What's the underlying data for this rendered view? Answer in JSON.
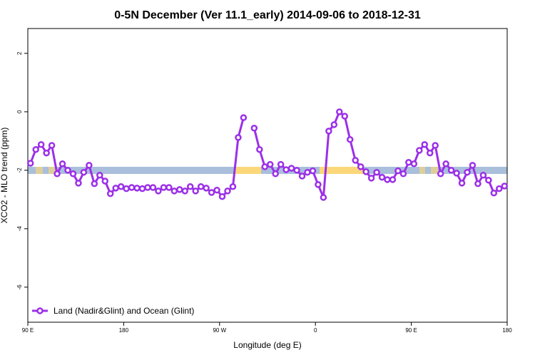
{
  "chart_data": {
    "type": "line",
    "title": "0-5N December (Ver 11.1_early)   2014-09-06 to 2018-12-31",
    "x_label": "Longitude (deg E)",
    "y_label": "XCO2 - MLO trend (ppm)",
    "xlim": [
      90,
      540
    ],
    "ylim": [
      -7.2,
      2.85
    ],
    "xticks": [
      {
        "value": 90,
        "label": "90 E"
      },
      {
        "value": 180,
        "label": "180"
      },
      {
        "value": 270,
        "label": "90 W"
      },
      {
        "value": 360,
        "label": "0"
      },
      {
        "value": 450,
        "label": "90 E"
      },
      {
        "value": 540,
        "label": "180"
      }
    ],
    "yticks": [
      2,
      0,
      -2,
      -4,
      -6
    ],
    "legend_position": "bottom-left",
    "x": [
      92.5,
      97.5,
      102.5,
      107.5,
      112.5,
      117.5,
      122.5,
      127.5,
      132.5,
      137.5,
      142.5,
      147.5,
      152.5,
      157.5,
      162.5,
      167.5,
      172.5,
      177.5,
      182.5,
      187.5,
      192.5,
      197.5,
      202.5,
      207.5,
      212.5,
      217.5,
      222.5,
      227.5,
      232.5,
      237.5,
      242.5,
      247.5,
      252.5,
      257.5,
      262.5,
      267.5,
      272.5,
      277.5,
      282.5,
      287.5,
      292.5,
      297.5,
      302.5,
      307.5,
      312.5,
      317.5,
      322.5,
      327.5,
      332.5,
      337.5,
      342.5,
      347.5,
      352.5,
      357.5,
      362.5,
      367.5,
      372.5,
      377.5,
      382.5,
      387.5,
      392.5,
      397.5,
      402.5,
      407.5,
      412.5,
      417.5,
      422.5,
      427.5,
      432.5,
      437.5,
      442.5,
      447.5,
      452.5,
      457.5,
      462.5,
      467.5,
      472.5,
      477.5,
      482.5,
      487.5,
      492.5,
      497.5,
      502.5,
      507.5,
      512.5,
      517.5,
      522.5,
      527.5,
      532.5,
      537.5
    ],
    "series": [
      {
        "name": "Land (Nadir&Glint) and Ocean (Glint)",
        "color": "#9b30e8",
        "values": [
          -1.76,
          -1.29,
          -1.12,
          -1.41,
          -1.15,
          -2.12,
          -1.78,
          -2.0,
          -2.12,
          -2.44,
          -2.07,
          -1.83,
          -2.46,
          -2.17,
          -2.37,
          -2.8,
          -2.61,
          -2.56,
          -2.63,
          -2.59,
          -2.61,
          -2.63,
          -2.59,
          -2.59,
          -2.71,
          -2.59,
          -2.59,
          -2.71,
          -2.66,
          -2.71,
          -2.56,
          -2.71,
          -2.56,
          -2.61,
          -2.76,
          -2.68,
          -2.9,
          -2.71,
          -2.56,
          -0.88,
          -0.2,
          null,
          -0.56,
          -1.29,
          -1.88,
          -1.8,
          -2.12,
          -1.8,
          -1.98,
          -1.93,
          -2.0,
          -2.2,
          -2.07,
          -2.02,
          -2.49,
          -2.93,
          -0.66,
          -0.44,
          0,
          -0.15,
          -0.95,
          -1.66,
          -1.88,
          -2.05,
          -2.27,
          -2.07,
          -2.24,
          -2.32,
          -2.32,
          -2.02,
          -2.12,
          -1.73,
          -1.78,
          -1.32,
          -1.12,
          -1.41,
          -1.15,
          -2.12,
          -1.78,
          -2.0,
          -2.1,
          -2.44,
          -2.07,
          -1.83,
          -2.46,
          -2.17,
          -2.34,
          -2.78,
          -2.63,
          -2.54
        ]
      }
    ]
  }
}
